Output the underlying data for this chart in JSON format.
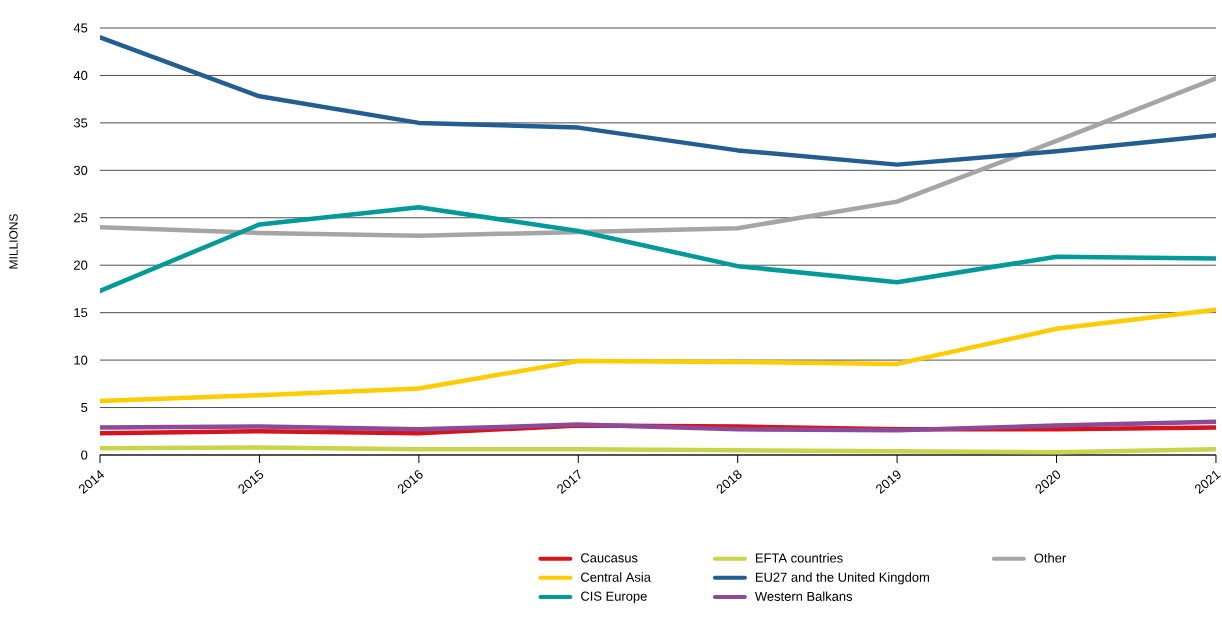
{
  "chart_data": {
    "type": "line",
    "ylabel": "MILLIONS",
    "categories": [
      "2014",
      "2015",
      "2016",
      "2017",
      "2018",
      "2019",
      "2020",
      "2021"
    ],
    "series": [
      {
        "name": "Caucasus",
        "color": "#d7141e",
        "values": [
          2.3,
          2.5,
          2.3,
          3.1,
          3.0,
          2.7,
          2.7,
          2.9
        ]
      },
      {
        "name": "Central Asia",
        "color": "#ffcc00",
        "values": [
          5.7,
          6.3,
          7.0,
          9.9,
          9.8,
          9.6,
          13.3,
          15.3
        ]
      },
      {
        "name": "CIS Europe",
        "color": "#009b98",
        "values": [
          17.3,
          24.3,
          26.1,
          23.6,
          19.9,
          18.2,
          20.9,
          20.7
        ]
      },
      {
        "name": "EFTA countries",
        "color": "#c8d44a",
        "values": [
          0.7,
          0.8,
          0.6,
          0.6,
          0.5,
          0.4,
          0.3,
          0.6
        ]
      },
      {
        "name": "EU27 and the United Kingdom",
        "color": "#225e92",
        "values": [
          44.0,
          37.8,
          35.0,
          34.5,
          32.1,
          30.6,
          32.0,
          33.7
        ]
      },
      {
        "name": "Western Balkans",
        "color": "#8c4a98",
        "values": [
          2.9,
          3.0,
          2.7,
          3.2,
          2.7,
          2.6,
          3.1,
          3.5
        ]
      },
      {
        "name": "Other",
        "color": "#a5a5a5",
        "values": [
          24.0,
          23.4,
          23.1,
          23.5,
          23.9,
          26.7,
          33.1,
          39.7
        ]
      }
    ],
    "ylim": [
      0,
      45
    ],
    "yticks": [
      0,
      5,
      10,
      15,
      20,
      25,
      30,
      35,
      40,
      45
    ],
    "grid": "y",
    "legend": "bottom",
    "line_style": "solid"
  }
}
